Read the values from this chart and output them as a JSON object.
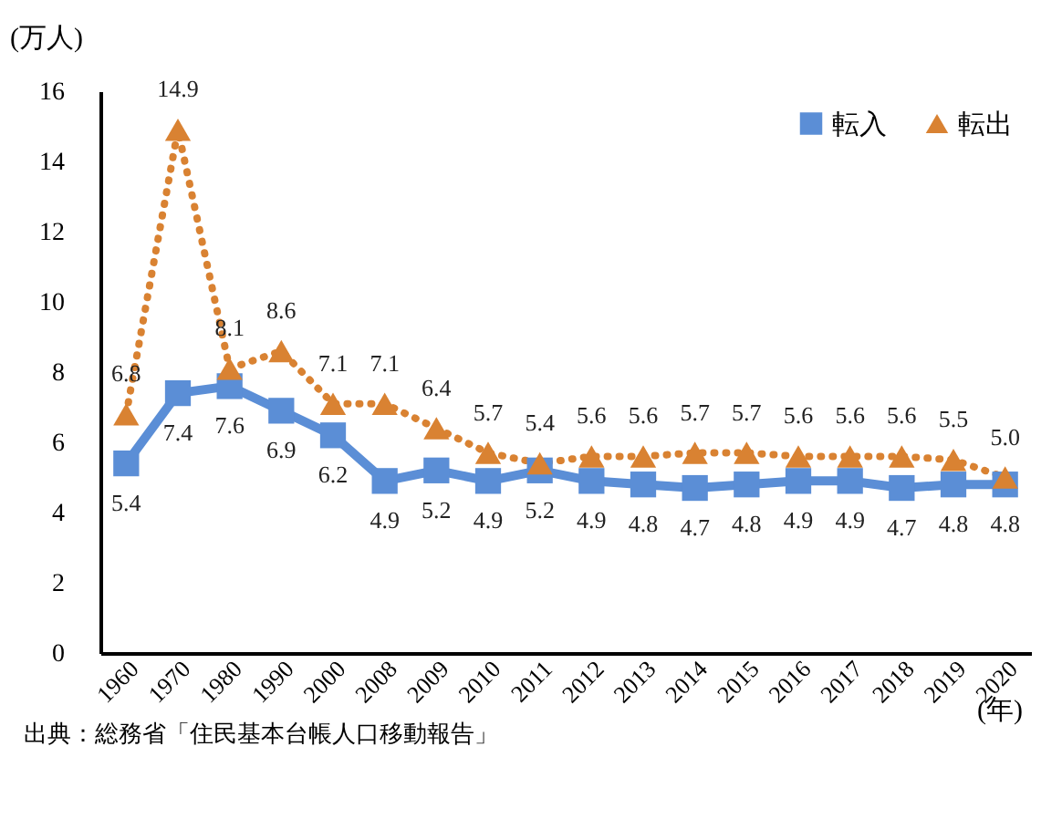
{
  "chart_data": {
    "type": "line",
    "ylabel": "(万人)",
    "xlabel": "(年)",
    "categories": [
      "1960",
      "1970",
      "1980",
      "1990",
      "2000",
      "2008",
      "2009",
      "2010",
      "2011",
      "2012",
      "2013",
      "2014",
      "2015",
      "2016",
      "2017",
      "2018",
      "2019",
      "2020"
    ],
    "series": [
      {
        "name": "転入",
        "color": "#5b8ed6",
        "marker": "square",
        "line_style": "solid",
        "values": [
          5.4,
          7.4,
          7.6,
          6.9,
          6.2,
          4.9,
          5.2,
          4.9,
          5.2,
          4.9,
          4.8,
          4.7,
          4.8,
          4.9,
          4.9,
          4.7,
          4.8,
          4.8
        ],
        "value_labels": [
          "5.4",
          "7.4",
          "7.6",
          "6.9",
          "6.2",
          "4.9",
          "5.2",
          "4.9",
          "5.2",
          "4.9",
          "4.8",
          "4.7",
          "4.8",
          "4.9",
          "4.9",
          "4.7",
          "4.8",
          "4.8"
        ]
      },
      {
        "name": "転出",
        "color": "#d98232",
        "marker": "triangle",
        "line_style": "dotted",
        "values": [
          6.8,
          14.9,
          8.1,
          8.6,
          7.1,
          7.1,
          6.4,
          5.7,
          5.4,
          5.6,
          5.6,
          5.7,
          5.7,
          5.6,
          5.6,
          5.6,
          5.5,
          5.0
        ],
        "value_labels": [
          "6.8",
          "14.9",
          "8.1",
          "8.6",
          "7.1",
          "7.1",
          "6.4",
          "5.7",
          "5.4",
          "5.6",
          "5.6",
          "5.7",
          "5.7",
          "5.6",
          "5.6",
          "5.6",
          "5.5",
          "5.0"
        ]
      }
    ],
    "ylim": [
      0,
      16
    ],
    "yticks": [
      0,
      2,
      4,
      6,
      8,
      10,
      12,
      14,
      16
    ],
    "grid": false,
    "legend": "top right",
    "annotations": [
      "出典：総務省「住民基本台帳人口移動報告」"
    ]
  }
}
